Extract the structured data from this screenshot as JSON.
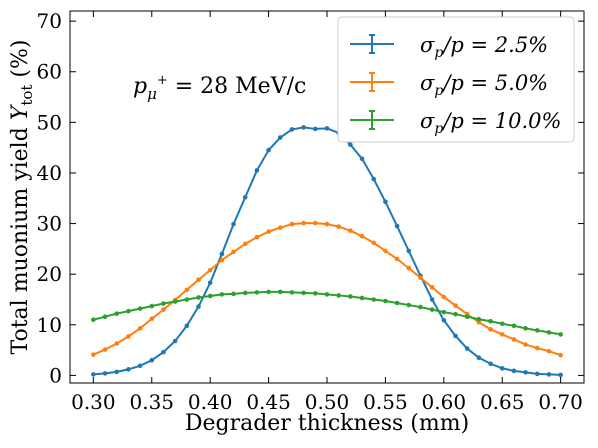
{
  "chart_data": {
    "type": "line",
    "xlabel": "Degrader thickness (mm)",
    "ylabel": "Total muonium yield Y_tot (%)",
    "ylabel_parts": {
      "main": "Total muonium yield ",
      "var": "Y",
      "sub": "tot",
      "unit": " (%)"
    },
    "annotation": {
      "var": "p",
      "sub": "μ",
      "sup": "+",
      "rest": " = 28 MeV/c"
    },
    "xlim": [
      0.28,
      0.72
    ],
    "ylim": [
      -1.5,
      72
    ],
    "xticks": [
      0.3,
      0.35,
      0.4,
      0.45,
      0.5,
      0.55,
      0.6,
      0.65,
      0.7
    ],
    "xtick_labels": [
      "0.30",
      "0.35",
      "0.40",
      "0.45",
      "0.50",
      "0.55",
      "0.60",
      "0.65",
      "0.70"
    ],
    "yticks": [
      0,
      10,
      20,
      30,
      40,
      50,
      60,
      70
    ],
    "ytick_labels": [
      "0",
      "10",
      "20",
      "30",
      "40",
      "50",
      "60",
      "70"
    ],
    "grid": false,
    "legend_position": "top-right",
    "series": [
      {
        "name": "σp/p = 2.5%",
        "legend": {
          "sym": "σ",
          "sub": "p",
          "rest": "/p = 2.5%"
        },
        "color": "#1f77b4",
        "x": [
          0.3,
          0.31,
          0.32,
          0.33,
          0.34,
          0.35,
          0.36,
          0.37,
          0.38,
          0.39,
          0.4,
          0.41,
          0.42,
          0.43,
          0.44,
          0.45,
          0.46,
          0.47,
          0.48,
          0.49,
          0.5,
          0.51,
          0.52,
          0.53,
          0.54,
          0.55,
          0.56,
          0.57,
          0.58,
          0.59,
          0.6,
          0.61,
          0.62,
          0.63,
          0.64,
          0.65,
          0.66,
          0.67,
          0.68,
          0.69,
          0.7
        ],
        "values": [
          0.2,
          0.4,
          0.7,
          1.2,
          1.9,
          3.0,
          4.6,
          6.8,
          9.8,
          13.6,
          18.3,
          24.0,
          29.9,
          35.2,
          40.5,
          44.5,
          47.0,
          48.6,
          49.0,
          48.7,
          48.8,
          47.9,
          45.6,
          42.8,
          38.8,
          34.3,
          29.5,
          24.6,
          19.7,
          15.0,
          10.9,
          7.8,
          5.3,
          3.5,
          2.3,
          1.4,
          0.9,
          0.6,
          0.3,
          0.2,
          0.1
        ]
      },
      {
        "name": "σp/p = 5.0%",
        "legend": {
          "sym": "σ",
          "sub": "p",
          "rest": "/p = 5.0%"
        },
        "color": "#ff7f0e",
        "x": [
          0.3,
          0.31,
          0.32,
          0.33,
          0.34,
          0.35,
          0.36,
          0.37,
          0.38,
          0.39,
          0.4,
          0.41,
          0.42,
          0.43,
          0.44,
          0.45,
          0.46,
          0.47,
          0.48,
          0.49,
          0.5,
          0.51,
          0.52,
          0.53,
          0.54,
          0.55,
          0.56,
          0.57,
          0.58,
          0.59,
          0.6,
          0.61,
          0.62,
          0.63,
          0.64,
          0.65,
          0.66,
          0.67,
          0.68,
          0.69,
          0.7
        ],
        "values": [
          4.1,
          5.1,
          6.3,
          7.7,
          9.3,
          11.2,
          13.0,
          14.9,
          16.9,
          18.9,
          20.8,
          22.8,
          24.4,
          26.0,
          27.3,
          28.4,
          29.2,
          29.9,
          30.1,
          30.1,
          29.9,
          29.4,
          28.6,
          27.5,
          26.2,
          24.6,
          23.0,
          21.2,
          19.3,
          17.4,
          15.5,
          13.8,
          12.1,
          10.5,
          9.1,
          8.1,
          7.1,
          6.1,
          5.4,
          4.8,
          4.0
        ]
      },
      {
        "name": "σp/p = 10.0%",
        "legend": {
          "sym": "σ",
          "sub": "p",
          "rest": "/p = 10.0%"
        },
        "color": "#2ca02c",
        "x": [
          0.3,
          0.31,
          0.32,
          0.33,
          0.34,
          0.35,
          0.36,
          0.37,
          0.38,
          0.39,
          0.4,
          0.41,
          0.42,
          0.43,
          0.44,
          0.45,
          0.46,
          0.47,
          0.48,
          0.49,
          0.5,
          0.51,
          0.52,
          0.53,
          0.54,
          0.55,
          0.56,
          0.57,
          0.58,
          0.59,
          0.6,
          0.61,
          0.62,
          0.63,
          0.64,
          0.65,
          0.66,
          0.67,
          0.68,
          0.69,
          0.7
        ],
        "values": [
          11.0,
          11.6,
          12.2,
          12.7,
          13.2,
          13.7,
          14.2,
          14.6,
          15.0,
          15.4,
          15.7,
          16.0,
          16.1,
          16.3,
          16.4,
          16.5,
          16.5,
          16.4,
          16.3,
          16.2,
          16.0,
          15.8,
          15.6,
          15.3,
          15.0,
          14.7,
          14.3,
          13.9,
          13.5,
          13.0,
          12.5,
          12.1,
          11.6,
          11.1,
          10.7,
          10.2,
          9.8,
          9.3,
          8.9,
          8.5,
          8.1
        ]
      }
    ]
  }
}
